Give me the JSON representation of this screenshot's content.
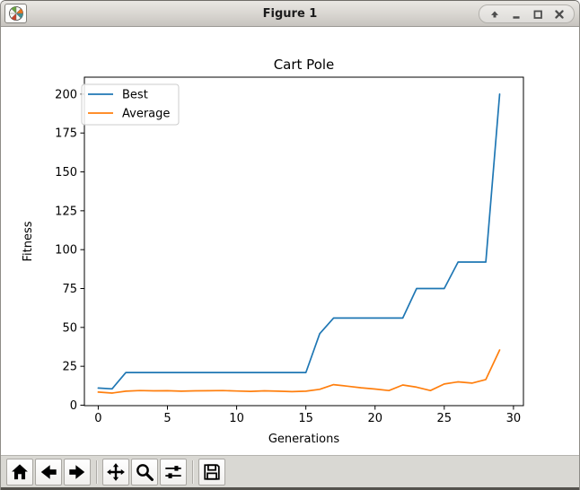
{
  "window": {
    "title": "Figure 1",
    "controls": [
      "shade",
      "minimize",
      "maximize",
      "close"
    ],
    "app_icon": "matplotlib-logo"
  },
  "toolbar": {
    "icons": [
      "home",
      "back",
      "forward",
      "pan",
      "zoom-to-rect",
      "configure-subplots",
      "save"
    ]
  },
  "chart_data": {
    "type": "line",
    "title": "Cart Pole",
    "xlabel": "Generations",
    "ylabel": "Fitness",
    "legend_position": "upper left",
    "grid": false,
    "xlim": [
      -1.0,
      30.72
    ],
    "ylim": [
      -0.3,
      210.9
    ],
    "xticks": [
      0,
      5,
      10,
      15,
      20,
      25,
      30
    ],
    "yticks": [
      0,
      25,
      50,
      75,
      100,
      125,
      150,
      175,
      200
    ],
    "x": [
      0,
      1,
      2,
      3,
      4,
      5,
      6,
      7,
      8,
      9,
      10,
      11,
      12,
      13,
      14,
      15,
      16,
      17,
      18,
      19,
      20,
      21,
      22,
      23,
      24,
      25,
      26,
      27,
      28,
      29
    ],
    "series": [
      {
        "name": "Best",
        "color": "#1f77b4",
        "values": [
          11,
          10.5,
          21,
          21,
          21,
          21,
          21,
          21,
          21,
          21,
          21,
          21,
          21,
          21,
          21,
          21,
          46,
          56,
          56,
          56,
          56,
          56,
          56,
          75,
          75,
          75,
          92,
          92,
          92,
          200
        ]
      },
      {
        "name": "Average",
        "color": "#ff7f0e",
        "values": [
          8.4,
          7.8,
          9.0,
          9.4,
          9.2,
          9.3,
          9.0,
          9.2,
          9.3,
          9.4,
          9.1,
          8.9,
          9.2,
          9.0,
          8.7,
          9.0,
          10.2,
          13.2,
          12.2,
          11.2,
          10.4,
          9.4,
          13.0,
          11.6,
          9.4,
          13.6,
          15.0,
          14.2,
          16.5,
          35.5
        ]
      }
    ]
  }
}
